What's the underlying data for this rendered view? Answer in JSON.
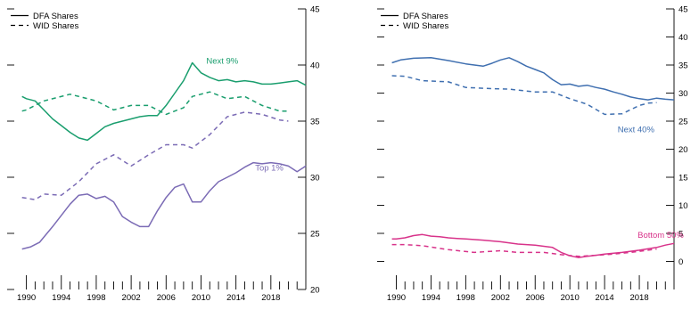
{
  "chart_data": [
    {
      "type": "line",
      "legend": {
        "placement": "top-left",
        "entries": [
          {
            "label": "DFA Shares",
            "dash": "solid"
          },
          {
            "label": "WID Shares",
            "dash": "dashed"
          }
        ]
      },
      "x_ticks": [
        "1990",
        "1994",
        "1998",
        "2002",
        "2006",
        "2010",
        "2014",
        "2018"
      ],
      "xlim": [
        1988,
        2022
      ],
      "y_axis_side": "right",
      "ylim": [
        20,
        45
      ],
      "y_ticks": [
        "20",
        "25",
        "30",
        "35",
        "40",
        "45"
      ],
      "grid": false,
      "series": [
        {
          "name": "Next 9%",
          "color": "#1a9e6e",
          "dash": "solid",
          "label_at": [
            2010.6,
            40.1
          ],
          "points": [
            [
              1989.5,
              37.2
            ],
            [
              1990,
              37.0
            ],
            [
              1991,
              36.8
            ],
            [
              1992,
              36.0
            ],
            [
              1993,
              35.2
            ],
            [
              1994,
              34.6
            ],
            [
              1995,
              34.0
            ],
            [
              1996,
              33.5
            ],
            [
              1997,
              33.3
            ],
            [
              1998,
              33.9
            ],
            [
              1999,
              34.5
            ],
            [
              2000,
              34.8
            ],
            [
              2001,
              35.0
            ],
            [
              2002,
              35.2
            ],
            [
              2003,
              35.4
            ],
            [
              2004,
              35.5
            ],
            [
              2005,
              35.5
            ],
            [
              2006,
              36.4
            ],
            [
              2007,
              37.5
            ],
            [
              2008,
              38.6
            ],
            [
              2009,
              40.2
            ],
            [
              2010,
              39.3
            ],
            [
              2011,
              38.9
            ],
            [
              2012,
              38.6
            ],
            [
              2013,
              38.7
            ],
            [
              2014,
              38.5
            ],
            [
              2015,
              38.6
            ],
            [
              2016,
              38.5
            ],
            [
              2017,
              38.3
            ],
            [
              2018,
              38.3
            ],
            [
              2019,
              38.4
            ],
            [
              2020,
              38.5
            ],
            [
              2021,
              38.6
            ],
            [
              2022,
              38.2
            ]
          ]
        },
        {
          "name": "",
          "color": "#1a9e6e",
          "dash": "dashed",
          "points": [
            [
              1989.5,
              35.9
            ],
            [
              1990,
              36.0
            ],
            [
              1992,
              36.8
            ],
            [
              1995,
              37.4
            ],
            [
              1998,
              36.8
            ],
            [
              2000,
              36.0
            ],
            [
              2002,
              36.4
            ],
            [
              2004,
              36.4
            ],
            [
              2006,
              35.6
            ],
            [
              2008,
              36.2
            ],
            [
              2009,
              37.2
            ],
            [
              2011,
              37.6
            ],
            [
              2013,
              37.0
            ],
            [
              2015,
              37.2
            ],
            [
              2017,
              36.4
            ],
            [
              2019,
              35.9
            ],
            [
              2020,
              35.9
            ]
          ]
        },
        {
          "name": "Top 1%",
          "color": "#7b6bb5",
          "dash": "solid",
          "label_at": [
            2016.2,
            30.6
          ],
          "points": [
            [
              1989.5,
              23.6
            ],
            [
              1990.5,
              23.8
            ],
            [
              1991.5,
              24.2
            ],
            [
              1993,
              25.6
            ],
            [
              1994,
              26.6
            ],
            [
              1995,
              27.6
            ],
            [
              1996,
              28.4
            ],
            [
              1997,
              28.5
            ],
            [
              1998,
              28.1
            ],
            [
              1999,
              28.3
            ],
            [
              2000,
              27.8
            ],
            [
              2001,
              26.5
            ],
            [
              2002,
              26.0
            ],
            [
              2003,
              25.6
            ],
            [
              2004,
              25.6
            ],
            [
              2005,
              27.0
            ],
            [
              2006,
              28.2
            ],
            [
              2007,
              29.1
            ],
            [
              2008,
              29.4
            ],
            [
              2009,
              27.8
            ],
            [
              2010,
              27.8
            ],
            [
              2011,
              28.8
            ],
            [
              2012,
              29.6
            ],
            [
              2013,
              30.0
            ],
            [
              2014,
              30.4
            ],
            [
              2015,
              30.9
            ],
            [
              2016,
              31.3
            ],
            [
              2017,
              31.2
            ],
            [
              2018,
              31.3
            ],
            [
              2019,
              31.2
            ],
            [
              2020,
              31.0
            ],
            [
              2021,
              30.5
            ],
            [
              2022,
              31.0
            ]
          ]
        },
        {
          "name": "",
          "color": "#7b6bb5",
          "dash": "dashed",
          "points": [
            [
              1989.5,
              28.2
            ],
            [
              1991,
              28.0
            ],
            [
              1992,
              28.5
            ],
            [
              1994,
              28.4
            ],
            [
              1996,
              29.6
            ],
            [
              1998,
              31.2
            ],
            [
              2000,
              32.0
            ],
            [
              2002,
              31.0
            ],
            [
              2004,
              32.0
            ],
            [
              2006,
              32.9
            ],
            [
              2008,
              32.9
            ],
            [
              2009,
              32.6
            ],
            [
              2011,
              33.8
            ],
            [
              2013,
              35.4
            ],
            [
              2015,
              35.8
            ],
            [
              2017,
              35.6
            ],
            [
              2019,
              35.1
            ],
            [
              2020,
              35.0
            ]
          ]
        }
      ]
    },
    {
      "type": "line",
      "legend": {
        "placement": "top-left",
        "entries": [
          {
            "label": "DFA Shares",
            "dash": "solid"
          },
          {
            "label": "WID Shares",
            "dash": "dashed"
          }
        ]
      },
      "x_ticks": [
        "1990",
        "1994",
        "1998",
        "2002",
        "2006",
        "2010",
        "2014",
        "2018"
      ],
      "xlim": [
        1988,
        2022
      ],
      "y_axis_side": "right",
      "ylim": [
        -5,
        45
      ],
      "y_ticks": [
        "0",
        "5",
        "10",
        "15",
        "20",
        "25",
        "30",
        "35",
        "40",
        "45"
      ],
      "grid": false,
      "series": [
        {
          "name": "",
          "color": "#3f6fb0",
          "dash": "solid",
          "points": [
            [
              1989.5,
              35.4
            ],
            [
              1990.5,
              35.9
            ],
            [
              1992,
              36.2
            ],
            [
              1994,
              36.3
            ],
            [
              1996,
              35.8
            ],
            [
              1998,
              35.2
            ],
            [
              2000,
              34.8
            ],
            [
              2001,
              35.3
            ],
            [
              2002,
              35.9
            ],
            [
              2003,
              36.3
            ],
            [
              2004,
              35.6
            ],
            [
              2005,
              34.8
            ],
            [
              2006,
              34.2
            ],
            [
              2007,
              33.6
            ],
            [
              2008,
              32.4
            ],
            [
              2009,
              31.5
            ],
            [
              2010,
              31.6
            ],
            [
              2011,
              31.2
            ],
            [
              2012,
              31.4
            ],
            [
              2013,
              31.0
            ],
            [
              2014,
              30.7
            ],
            [
              2015,
              30.2
            ],
            [
              2016,
              29.8
            ],
            [
              2017,
              29.3
            ],
            [
              2018,
              29.0
            ],
            [
              2019,
              28.8
            ],
            [
              2020,
              29.1
            ],
            [
              2021,
              28.9
            ],
            [
              2022,
              28.8
            ]
          ]
        },
        {
          "name": "Next 40%",
          "color": "#3f6fb0",
          "dash": "dashed",
          "label_at": [
            2015.5,
            23.0
          ],
          "points": [
            [
              1989.5,
              33.1
            ],
            [
              1991,
              33.0
            ],
            [
              1993,
              32.2
            ],
            [
              1996,
              32.0
            ],
            [
              1998,
              31.0
            ],
            [
              2001,
              30.8
            ],
            [
              2003,
              30.7
            ],
            [
              2006,
              30.2
            ],
            [
              2008,
              30.2
            ],
            [
              2010,
              29.0
            ],
            [
              2012,
              28.0
            ],
            [
              2014,
              26.2
            ],
            [
              2016,
              26.3
            ],
            [
              2018,
              27.8
            ],
            [
              2019,
              28.2
            ],
            [
              2020,
              28.3
            ]
          ]
        },
        {
          "name": "Bottom 50%",
          "color": "#d8338a",
          "dash": "solid",
          "label_at": [
            2017.8,
            4.2
          ],
          "points": [
            [
              1989.5,
              4.0
            ],
            [
              1990,
              4.0
            ],
            [
              1991,
              4.2
            ],
            [
              1992,
              4.6
            ],
            [
              1993,
              4.8
            ],
            [
              1994,
              4.5
            ],
            [
              1995,
              4.4
            ],
            [
              1996,
              4.2
            ],
            [
              1997,
              4.1
            ],
            [
              1998,
              4.0
            ],
            [
              2000,
              3.8
            ],
            [
              2002,
              3.5
            ],
            [
              2004,
              3.1
            ],
            [
              2006,
              2.9
            ],
            [
              2008,
              2.5
            ],
            [
              2009,
              1.6
            ],
            [
              2010,
              1.0
            ],
            [
              2011,
              0.7
            ],
            [
              2012,
              0.9
            ],
            [
              2013,
              1.1
            ],
            [
              2014,
              1.3
            ],
            [
              2016,
              1.6
            ],
            [
              2018,
              2.0
            ],
            [
              2020,
              2.5
            ],
            [
              2021,
              2.9
            ],
            [
              2022,
              3.2
            ]
          ]
        },
        {
          "name": "",
          "color": "#d8338a",
          "dash": "dashed",
          "points": [
            [
              1989.5,
              3.0
            ],
            [
              1991,
              3.0
            ],
            [
              1993,
              2.8
            ],
            [
              1996,
              2.1
            ],
            [
              1999,
              1.6
            ],
            [
              2002,
              1.9
            ],
            [
              2004,
              1.6
            ],
            [
              2007,
              1.6
            ],
            [
              2009,
              1.2
            ],
            [
              2011,
              0.9
            ],
            [
              2013,
              1.1
            ],
            [
              2015,
              1.3
            ],
            [
              2017,
              1.6
            ],
            [
              2019,
              2.0
            ],
            [
              2020,
              2.2
            ]
          ]
        }
      ]
    }
  ]
}
